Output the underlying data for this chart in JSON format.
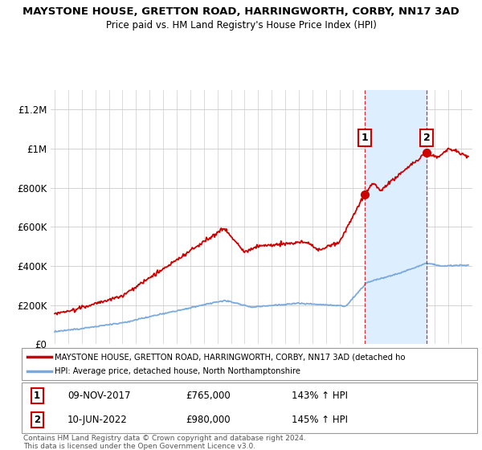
{
  "title1": "MAYSTONE HOUSE, GRETTON ROAD, HARRINGWORTH, CORBY, NN17 3AD",
  "title2": "Price paid vs. HM Land Registry's House Price Index (HPI)",
  "legend1": "MAYSTONE HOUSE, GRETTON ROAD, HARRINGWORTH, CORBY, NN17 3AD (detached ho",
  "legend2": "HPI: Average price, detached house, North Northamptonshire",
  "annotation1": {
    "label": "1",
    "date": "09-NOV-2017",
    "price": "£765,000",
    "hpi": "143% ↑ HPI",
    "year": 2017.85
  },
  "annotation2": {
    "label": "2",
    "date": "10-JUN-2022",
    "price": "£980,000",
    "hpi": "145% ↑ HPI",
    "year": 2022.44
  },
  "footer": "Contains HM Land Registry data © Crown copyright and database right 2024.\nThis data is licensed under the Open Government Licence v3.0.",
  "ylim": [
    0,
    1300000
  ],
  "yticks": [
    0,
    200000,
    400000,
    600000,
    800000,
    1000000,
    1200000
  ],
  "ytick_labels": [
    "£0",
    "£200K",
    "£400K",
    "£600K",
    "£800K",
    "£1M",
    "£1.2M"
  ],
  "red_color": "#cc0000",
  "blue_color": "#7aaadd",
  "background": "#ffffff",
  "plot_bg": "#ffffff",
  "grid_color": "#cccccc",
  "shade_color": "#ddeeff",
  "ann1_x": 2017.85,
  "ann1_y": 765000,
  "ann2_x": 2022.44,
  "ann2_y": 980000,
  "xmin": 1995,
  "xmax": 2025.5
}
